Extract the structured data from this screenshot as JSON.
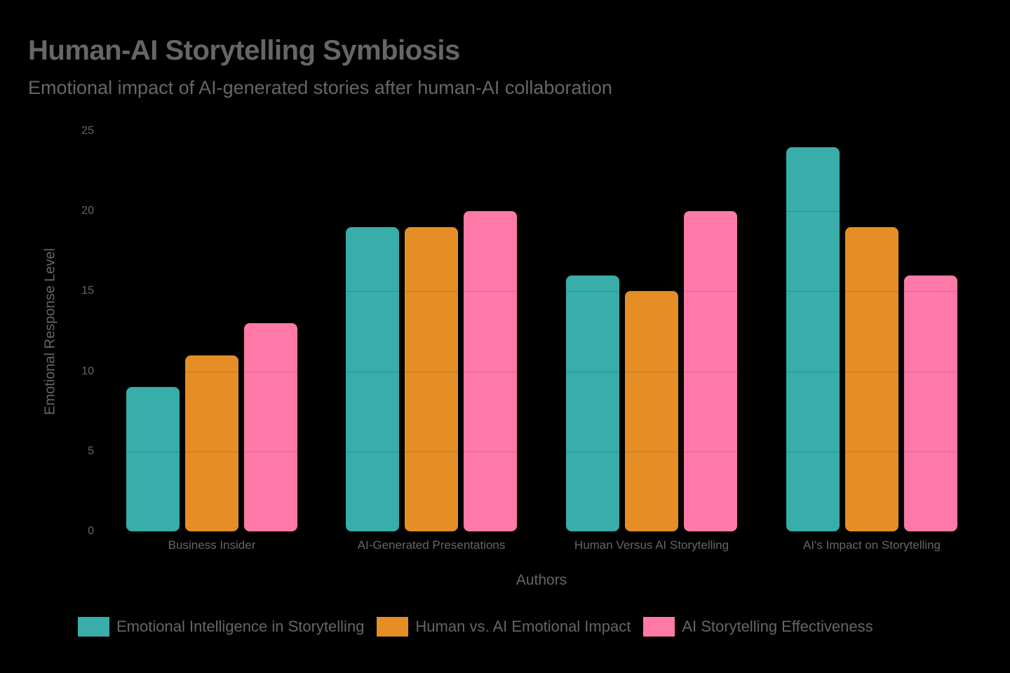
{
  "header": {
    "title": "Human-AI Storytelling Symbiosis",
    "subtitle": "Emotional impact of AI-generated stories after human-AI collaboration"
  },
  "axes": {
    "xlabel": "Authors",
    "ylabel": "Emotional Response Level",
    "yticks": [
      "0",
      "5",
      "10",
      "15",
      "20",
      "25"
    ]
  },
  "categories": [
    "Business Insider",
    "AI-Generated Presentations",
    "Human Versus AI Storytelling",
    "AI's Impact on Storytelling"
  ],
  "legend": [
    {
      "label": "Emotional Intelligence in Storytelling",
      "color": "#38ADA9"
    },
    {
      "label": "Human vs. AI Emotional Impact",
      "color": "#E58E26"
    },
    {
      "label": "AI Storytelling Effectiveness",
      "color": "#FF79A8"
    }
  ],
  "chart_data": {
    "type": "bar",
    "title": "Human-AI Storytelling Symbiosis",
    "subtitle": "Emotional impact of AI-generated stories after human-AI collaboration",
    "xlabel": "Authors",
    "ylabel": "Emotional Response Level",
    "categories": [
      "Business Insider",
      "AI-Generated Presentations",
      "Human Versus AI Storytelling",
      "AI's Impact on Storytelling"
    ],
    "series": [
      {
        "name": "Emotional Intelligence in Storytelling",
        "color": "#38ADA9",
        "values": [
          9,
          19,
          16,
          24
        ]
      },
      {
        "name": "Human vs. AI Emotional Impact",
        "color": "#E58E26",
        "values": [
          11,
          19,
          15,
          19
        ]
      },
      {
        "name": "AI Storytelling Effectiveness",
        "color": "#FF79A8",
        "values": [
          13,
          20,
          20,
          16
        ]
      }
    ],
    "ylim": [
      0,
      25
    ],
    "yticks": [
      0,
      5,
      10,
      15,
      20,
      25
    ],
    "grid": true,
    "legend_position": "bottom"
  }
}
